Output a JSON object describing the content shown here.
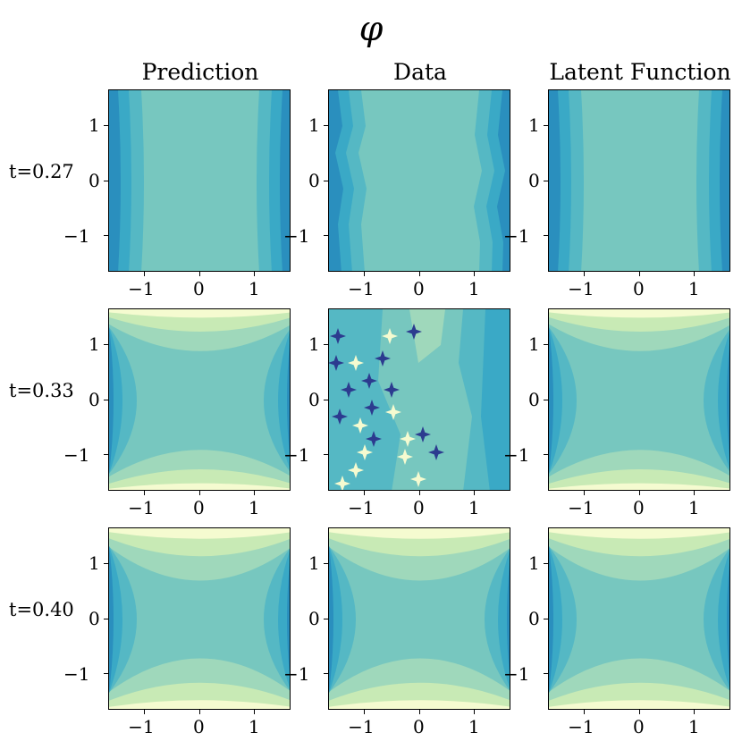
{
  "figure_title": "φ",
  "column_titles": [
    "Prediction",
    "Data",
    "Latent Function"
  ],
  "row_labels": [
    "t=0.27",
    "t=0.33",
    "t=0.40"
  ],
  "colors": {
    "dark": "#2c3b8f",
    "deep": "#2a8fbe",
    "mid_blue": "#3aa9c6",
    "teal": "#55b8c4",
    "aqua": "#77c7bf",
    "pale_green": "#9fd8bb",
    "light": "#c8eab5",
    "cream": "#f5fbd0"
  },
  "chart_data": [
    {
      "type": "heatmap",
      "panel": "Prediction t=0.27",
      "x_ticks": [
        "−1",
        "0",
        "1"
      ],
      "y_ticks": [
        "1",
        "0",
        "−1"
      ],
      "xlim": [
        -1.65,
        1.65
      ],
      "ylim": [
        -1.65,
        1.65
      ]
    },
    {
      "type": "heatmap",
      "panel": "Data t=0.27",
      "x_ticks": [
        "−1",
        "0",
        "1"
      ],
      "y_ticks": [
        "1",
        "0",
        "−1"
      ],
      "xlim": [
        -1.65,
        1.65
      ],
      "ylim": [
        -1.65,
        1.65
      ]
    },
    {
      "type": "heatmap",
      "panel": "Latent Function t=0.27",
      "x_ticks": [
        "−1",
        "0",
        "1"
      ],
      "y_ticks": [
        "1",
        "0",
        "−1"
      ],
      "xlim": [
        -1.65,
        1.65
      ],
      "ylim": [
        -1.65,
        1.65
      ]
    },
    {
      "type": "heatmap",
      "panel": "Prediction t=0.33",
      "x_ticks": [
        "−1",
        "0",
        "1"
      ],
      "y_ticks": [
        "1",
        "0",
        "−1"
      ],
      "xlim": [
        -1.65,
        1.65
      ],
      "ylim": [
        -1.65,
        1.65
      ]
    },
    {
      "type": "heatmap",
      "panel": "Data t=0.33",
      "x_ticks": [
        "−1",
        "0",
        "1"
      ],
      "y_ticks": [
        "1",
        "0",
        "−1"
      ],
      "xlim": [
        -1.65,
        1.65
      ],
      "ylim": [
        -1.65,
        1.65
      ]
    },
    {
      "type": "heatmap",
      "panel": "Latent Function t=0.33",
      "x_ticks": [
        "−1",
        "0",
        "1"
      ],
      "y_ticks": [
        "1",
        "0",
        "−1"
      ],
      "xlim": [
        -1.65,
        1.65
      ],
      "ylim": [
        -1.65,
        1.65
      ]
    },
    {
      "type": "heatmap",
      "panel": "Prediction t=0.40",
      "x_ticks": [
        "−1",
        "0",
        "1"
      ],
      "y_ticks": [
        "1",
        "0",
        "−1"
      ],
      "xlim": [
        -1.65,
        1.65
      ],
      "ylim": [
        -1.65,
        1.65
      ]
    },
    {
      "type": "heatmap",
      "panel": "Data t=0.40",
      "x_ticks": [
        "−1",
        "0",
        "1"
      ],
      "y_ticks": [
        "1",
        "0",
        "−1"
      ],
      "xlim": [
        -1.65,
        1.65
      ],
      "ylim": [
        -1.65,
        1.65
      ]
    },
    {
      "type": "heatmap",
      "panel": "Latent Function t=0.40",
      "x_ticks": [
        "−1",
        "0",
        "1"
      ],
      "y_ticks": [
        "1",
        "0",
        "−1"
      ],
      "xlim": [
        -1.65,
        1.65
      ],
      "ylim": [
        -1.65,
        1.65
      ]
    }
  ]
}
